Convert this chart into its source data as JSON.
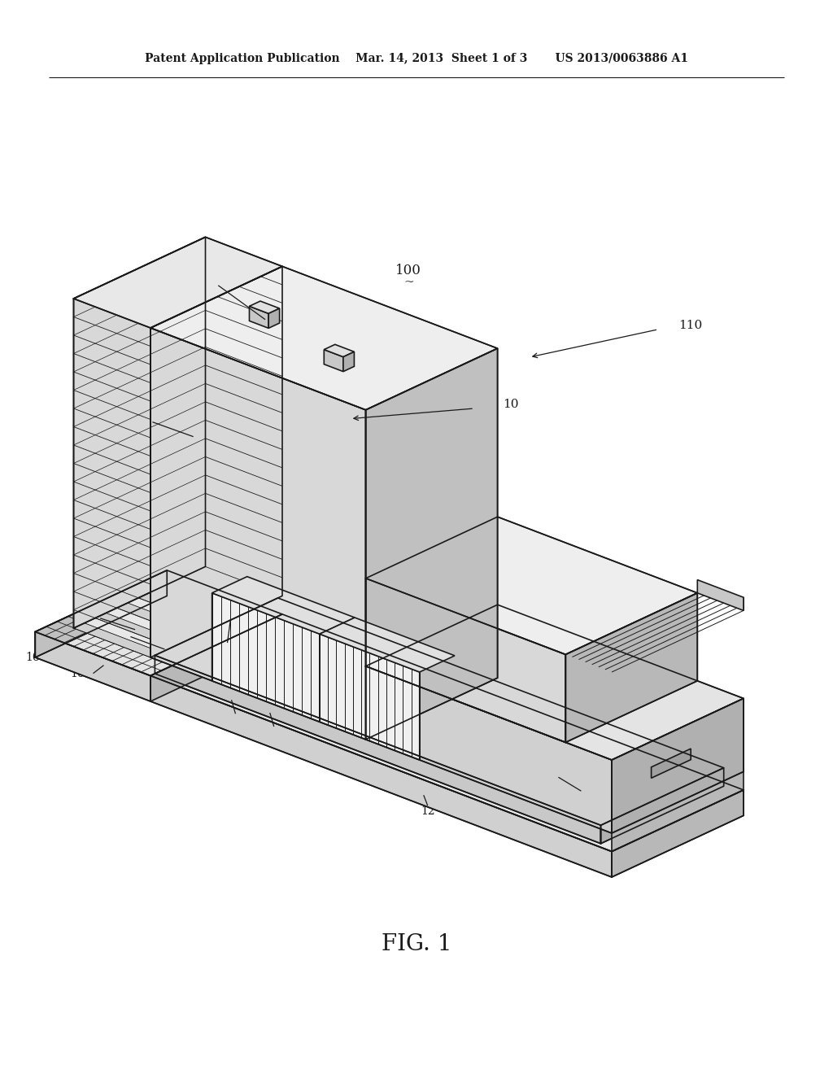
{
  "bg_color": "#ffffff",
  "lc": "#1a1a1a",
  "lw": 1.2,
  "fill_white": "#ffffff",
  "fill_light": "#f0f0f0",
  "fill_mid": "#d8d8d8",
  "fill_dark": "#b8b8b8",
  "fill_darker": "#989898"
}
